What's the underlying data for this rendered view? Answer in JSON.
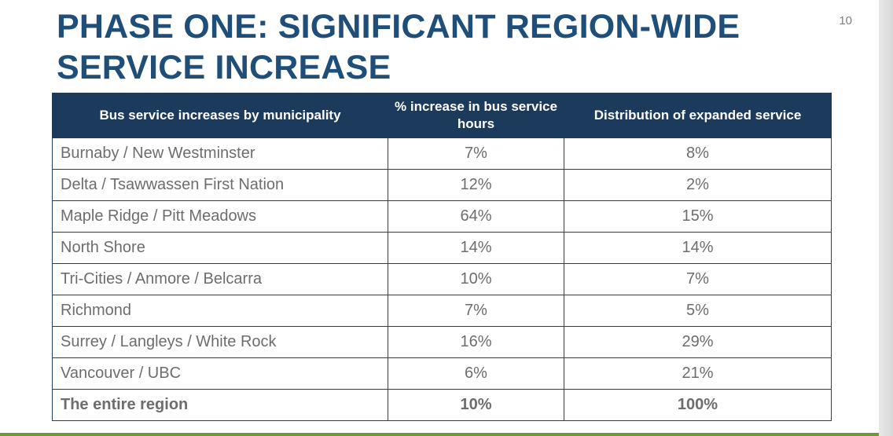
{
  "slide": {
    "title_line1": "PHASE ONE: SIGNIFICANT REGION-WIDE",
    "title_line2": "SERVICE INCREASE",
    "page_number": "10"
  },
  "table": {
    "headers": [
      "Bus service increases by municipality",
      "% increase in bus service hours",
      "Distribution of expanded service"
    ],
    "rows": [
      {
        "municipality": "Burnaby / New Westminster",
        "increase": "7%",
        "distribution": "8%"
      },
      {
        "municipality": "Delta / Tsawwassen First Nation",
        "increase": "12%",
        "distribution": "2%"
      },
      {
        "municipality": "Maple Ridge / Pitt Meadows",
        "increase": "64%",
        "distribution": "15%"
      },
      {
        "municipality": "North Shore",
        "increase": "14%",
        "distribution": "14%"
      },
      {
        "municipality": "Tri-Cities / Anmore / Belcarra",
        "increase": "10%",
        "distribution": "7%"
      },
      {
        "municipality": "Richmond",
        "increase": "7%",
        "distribution": "5%"
      },
      {
        "municipality": "Surrey / Langleys / White Rock",
        "increase": "16%",
        "distribution": "29%"
      },
      {
        "municipality": "Vancouver / UBC",
        "increase": "6%",
        "distribution": "21%"
      }
    ],
    "total": {
      "municipality": "The entire region",
      "increase": "10%",
      "distribution": "100%"
    }
  },
  "colors": {
    "title": "#1f4e79",
    "header_bg": "#1b3a5c",
    "body_text": "#6d6d6d",
    "accent_line": "#6a9a3a"
  }
}
